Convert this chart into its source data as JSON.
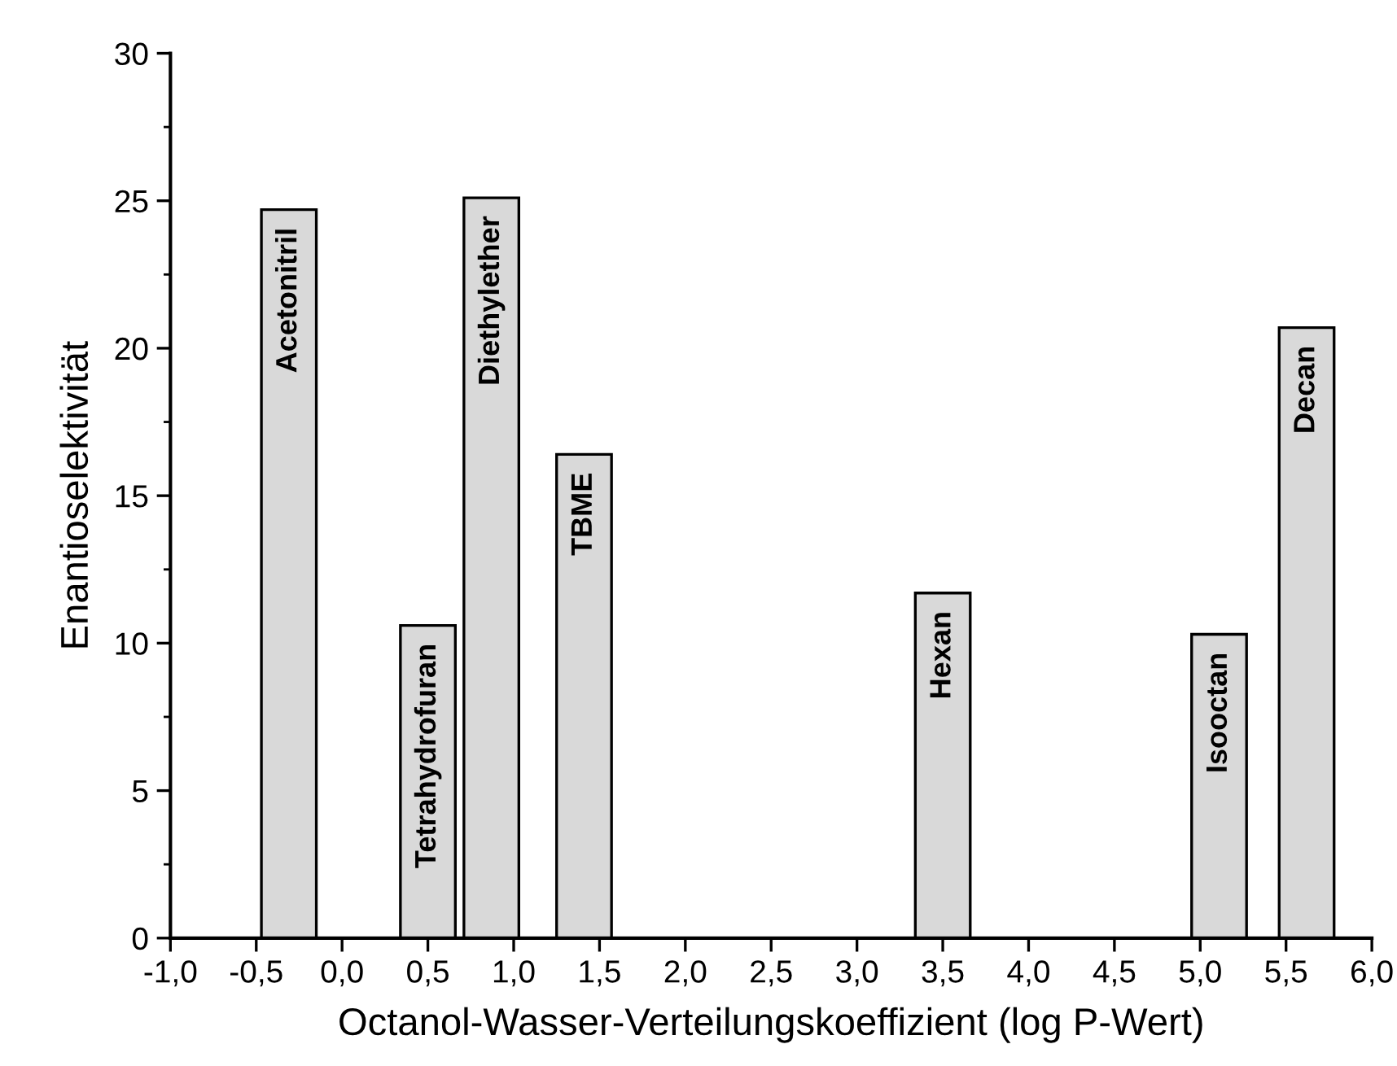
{
  "chart_data": {
    "type": "bar",
    "xlabel": "Octanol-Wasser-Verteilungskoeffizient (log P-Wert)",
    "ylabel": "Enantioselektivität",
    "x": [
      -0.31,
      0.5,
      0.87,
      1.41,
      3.5,
      5.11,
      5.62
    ],
    "values": [
      24.7,
      10.6,
      25.1,
      16.4,
      11.7,
      10.3,
      20.7
    ],
    "color": "#d9d9d9",
    "annotations": [
      {
        "text": "Acetonitril",
        "x": -0.31,
        "y": 24.7
      },
      {
        "text": "Tetrahydrofuran",
        "x": 0.5,
        "y": 10.6
      },
      {
        "text": "Diethylether",
        "x": 0.87,
        "y": 25.1
      },
      {
        "text": "TBME",
        "x": 1.41,
        "y": 16.4
      },
      {
        "text": "Hexan",
        "x": 3.5,
        "y": 11.7
      },
      {
        "text": "Isooctan",
        "x": 5.11,
        "y": 10.3
      },
      {
        "text": "Decan",
        "x": 5.62,
        "y": 20.7
      }
    ],
    "xlim": [
      -1.0,
      6.0
    ],
    "xticks": [
      {
        "value": -1.0,
        "label": "-1,0"
      },
      {
        "value": -0.5,
        "label": "-0,5"
      },
      {
        "value": 0.0,
        "label": "0,0"
      },
      {
        "value": 0.5,
        "label": "0,5"
      },
      {
        "value": 1.0,
        "label": "1,0"
      },
      {
        "value": 1.5,
        "label": "1,5"
      },
      {
        "value": 2.0,
        "label": "2,0"
      },
      {
        "value": 2.5,
        "label": "2,5"
      },
      {
        "value": 3.0,
        "label": "3,0"
      },
      {
        "value": 3.5,
        "label": "3,5"
      },
      {
        "value": 4.0,
        "label": "4,0"
      },
      {
        "value": 4.5,
        "label": "4,5"
      },
      {
        "value": 5.0,
        "label": "5,0"
      },
      {
        "value": 5.5,
        "label": "5,5"
      },
      {
        "value": 6.0,
        "label": "6,0"
      }
    ],
    "ylim": [
      0,
      30
    ],
    "yticks": [
      0,
      5,
      10,
      15,
      20,
      25,
      30
    ],
    "grid": false,
    "legend": false
  }
}
